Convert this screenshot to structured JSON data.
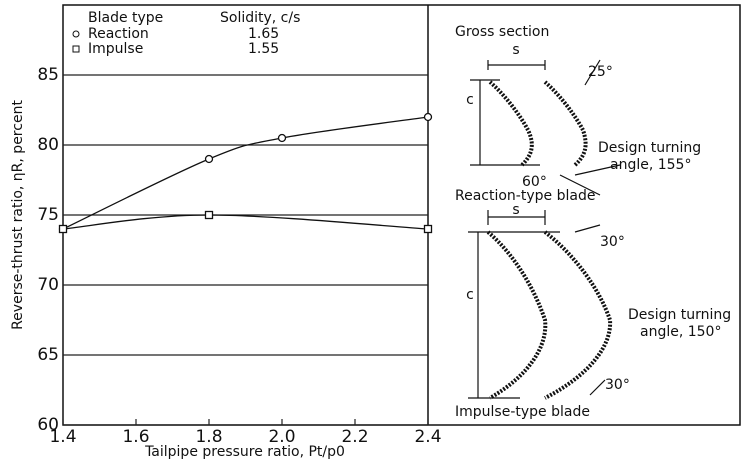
{
  "chart_data": {
    "type": "line",
    "xlabel": "Tailpipe pressure ratio, Pt/p0",
    "ylabel": "Reverse-thrust ratio, ηR, percent",
    "xlim": [
      1.4,
      2.4
    ],
    "ylim": [
      60,
      90
    ],
    "xticks": [
      1.4,
      1.6,
      1.8,
      {
        "value": 2,
        "label": "2.0"
      },
      2.2,
      2.4
    ],
    "yticks": [
      60,
      65,
      70,
      75,
      80,
      85
    ],
    "grid": true,
    "legend_headers": [
      "Blade type",
      "Solidity, c/s"
    ],
    "series": [
      {
        "name": "Reaction",
        "marker": "circle",
        "color": "#111111",
        "solidity": 1.65,
        "x": [
          1.4,
          1.8,
          2.0,
          2.4
        ],
        "values": [
          74,
          79,
          80.5,
          82
        ]
      },
      {
        "name": "Impulse",
        "marker": "square",
        "color": "#111111",
        "solidity": 1.55,
        "x": [
          1.4,
          1.8,
          2.4
        ],
        "values": [
          74,
          75,
          74
        ]
      }
    ]
  },
  "diagram": {
    "title": "Gross section",
    "reaction": {
      "s": "s",
      "c": "c",
      "inlet": "25°",
      "outlet": "60°",
      "turning": [
        "Design turning",
        "angle, 155°"
      ],
      "caption": "Reaction-type blade"
    },
    "impulse": {
      "s": "s",
      "c": "c",
      "inlet": "30°",
      "outlet": "30°",
      "turning": [
        "Design turning",
        "angle, 150°"
      ],
      "caption": "Impulse-type blade"
    }
  }
}
